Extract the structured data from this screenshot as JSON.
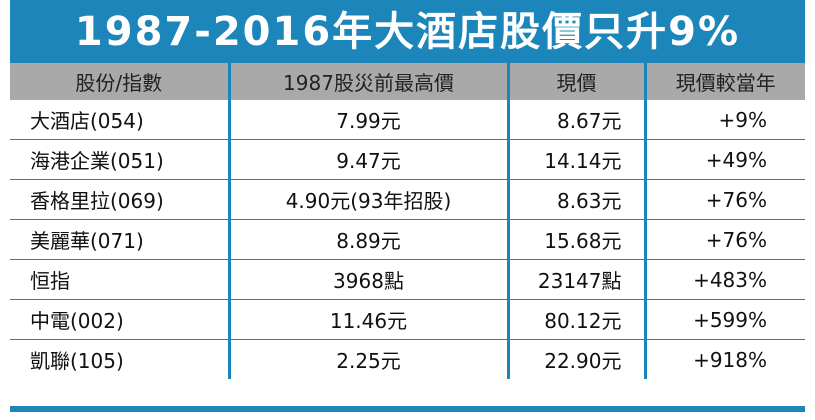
{
  "title": "1987-2016年大酒店股價只升9%",
  "colors": {
    "accent": "#1c86bb",
    "header_bg": "#a9a9a9"
  },
  "table": {
    "headers": [
      "股份/指數",
      "1987股災前最高價",
      "現價",
      "現價較當年"
    ],
    "rows": [
      [
        "大酒店(054)",
        "7.99元",
        "8.67元",
        "+9%"
      ],
      [
        "海港企業(051)",
        "9.47元",
        "14.14元",
        "+49%"
      ],
      [
        "香格里拉(069)",
        "4.90元(93年招股)",
        "8.63元",
        "+76%"
      ],
      [
        "美麗華(071)",
        "8.89元",
        "15.68元",
        "+76%"
      ],
      [
        "恒指",
        "3968點",
        "23147點",
        "+483%"
      ],
      [
        "中電(002)",
        "11.46元",
        "80.12元",
        "+599%"
      ],
      [
        "凱聯(105)",
        "2.25元",
        "22.90元",
        "+918%"
      ]
    ]
  }
}
